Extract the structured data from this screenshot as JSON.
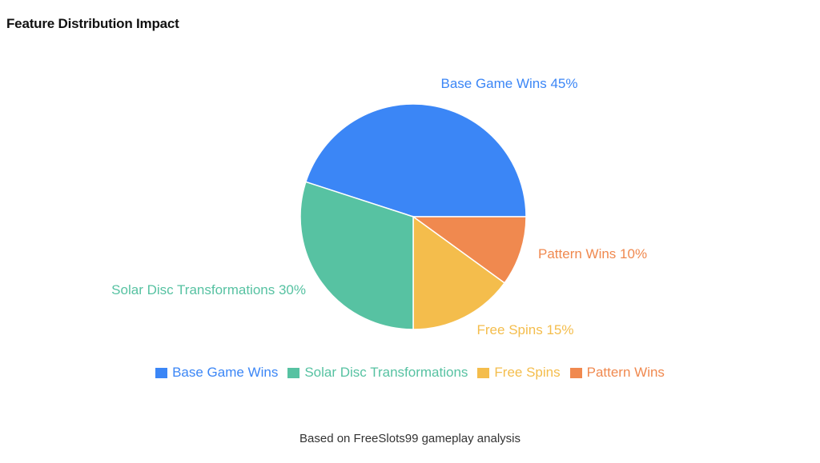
{
  "title": "Feature Distribution Impact",
  "footnote": "Based on FreeSlots99 gameplay analysis",
  "chart_data": {
    "type": "pie",
    "title": "Feature Distribution Impact",
    "slices": [
      {
        "label": "Base Game Wins",
        "value": 45,
        "display": "Base Game Wins 45%",
        "color": "#3b86f6"
      },
      {
        "label": "Pattern Wins",
        "value": 10,
        "display": "Pattern Wins 10%",
        "color": "#f0894f"
      },
      {
        "label": "Free Spins",
        "value": 15,
        "display": "Free Spins 15%",
        "color": "#f4bd4c"
      },
      {
        "label": "Solar Disc Transformations",
        "value": 30,
        "display": "Solar Disc Transformations 30%",
        "color": "#57c2a2"
      }
    ],
    "legend": [
      {
        "label": "Base Game Wins",
        "color": "#3b86f6"
      },
      {
        "label": "Solar Disc Transformations",
        "color": "#57c2a2"
      },
      {
        "label": "Free Spins",
        "color": "#f4bd4c"
      },
      {
        "label": "Pattern Wins",
        "color": "#f0894f"
      }
    ],
    "legend_position": "bottom"
  }
}
